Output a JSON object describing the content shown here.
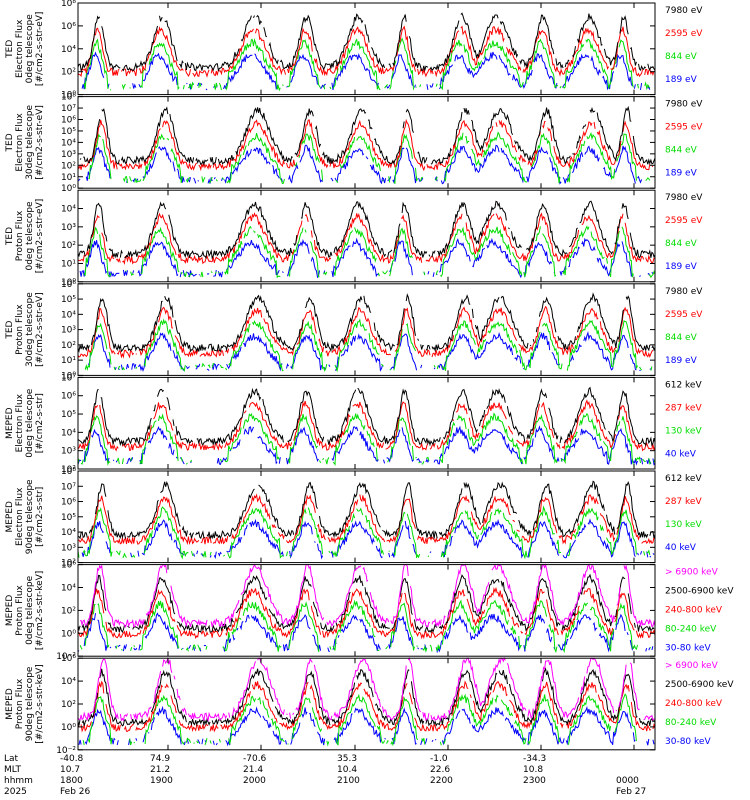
{
  "chart_data": [
    {
      "type": "line",
      "ylabel": [
        "TED",
        "Electron Flux",
        "0deg telescope",
        "[#/cm2-s-str-eV]"
      ],
      "ylim": [
        1,
        100000000
      ],
      "yscale": "log",
      "yticks": [
        {
          "value": 1,
          "label": "10⁰"
        },
        {
          "value": 100,
          "label": "10²"
        },
        {
          "value": 10000,
          "label": "10⁴"
        },
        {
          "value": 1000000,
          "label": "10⁶"
        },
        {
          "value": 100000000,
          "label": "10⁸"
        }
      ],
      "series": [
        {
          "name": "7980 eV",
          "color": "#000000"
        },
        {
          "name": "2595 eV",
          "color": "#ff0000"
        },
        {
          "name": "844 eV",
          "color": "#00dd00"
        },
        {
          "name": "189 eV",
          "color": "#0000ff"
        }
      ]
    },
    {
      "type": "line",
      "ylabel": [
        "TED",
        "Electron Flux",
        "30deg telescope",
        "[#/cm2-s-str-eV]"
      ],
      "ylim": [
        1,
        100000000
      ],
      "yscale": "log",
      "yticks": [
        {
          "value": 1,
          "label": "10⁰"
        },
        {
          "value": 10,
          "label": "10¹"
        },
        {
          "value": 100,
          "label": "10²"
        },
        {
          "value": 1000,
          "label": "10³"
        },
        {
          "value": 10000,
          "label": "10⁴"
        },
        {
          "value": 100000,
          "label": "10⁵"
        },
        {
          "value": 1000000,
          "label": "10⁶"
        },
        {
          "value": 10000000,
          "label": "10⁷"
        },
        {
          "value": 100000000,
          "label": "10⁸"
        }
      ],
      "series": [
        {
          "name": "7980 eV",
          "color": "#000000"
        },
        {
          "name": "2595 eV",
          "color": "#ff0000"
        },
        {
          "name": "844 eV",
          "color": "#00dd00"
        },
        {
          "name": "189 eV",
          "color": "#0000ff"
        }
      ]
    },
    {
      "type": "line",
      "ylabel": [
        "TED",
        "Proton Flux",
        "0deg telescope",
        "[#/cm2-s-str-eV]"
      ],
      "ylim": [
        1,
        100000
      ],
      "yscale": "log",
      "yticks": [
        {
          "value": 1,
          "label": "10⁰"
        },
        {
          "value": 10,
          "label": "10¹"
        },
        {
          "value": 100,
          "label": "10²"
        },
        {
          "value": 1000,
          "label": "10³"
        },
        {
          "value": 10000,
          "label": "10⁴"
        }
      ],
      "series": [
        {
          "name": "7980 eV",
          "color": "#000000"
        },
        {
          "name": "2595 eV",
          "color": "#ff0000"
        },
        {
          "name": "844 eV",
          "color": "#00dd00"
        },
        {
          "name": "189 eV",
          "color": "#0000ff"
        }
      ]
    },
    {
      "type": "line",
      "ylabel": [
        "TED",
        "Proton Flux",
        "30deg telescope",
        "[#/cm2-s-str-eV]"
      ],
      "ylim": [
        1,
        1000000
      ],
      "yscale": "log",
      "yticks": [
        {
          "value": 1,
          "label": "10⁰"
        },
        {
          "value": 10,
          "label": "10¹"
        },
        {
          "value": 100,
          "label": "10²"
        },
        {
          "value": 1000,
          "label": "10³"
        },
        {
          "value": 10000,
          "label": "10⁴"
        },
        {
          "value": 100000,
          "label": "10⁵"
        },
        {
          "value": 1000000,
          "label": "10⁶"
        }
      ],
      "series": [
        {
          "name": "7980 eV",
          "color": "#000000"
        },
        {
          "name": "2595 eV",
          "color": "#ff0000"
        },
        {
          "name": "844 eV",
          "color": "#00dd00"
        },
        {
          "name": "189 eV",
          "color": "#0000ff"
        }
      ]
    },
    {
      "type": "line",
      "ylabel": [
        "MEPED",
        "Electron Flux",
        "0deg telescope",
        "[#/cm2-s-str]"
      ],
      "ylim": [
        100,
        10000000
      ],
      "yscale": "log",
      "yticks": [
        {
          "value": 100,
          "label": "10²"
        },
        {
          "value": 1000,
          "label": "10³"
        },
        {
          "value": 10000,
          "label": "10⁴"
        },
        {
          "value": 100000,
          "label": "10⁵"
        },
        {
          "value": 1000000,
          "label": "10⁶"
        },
        {
          "value": 10000000,
          "label": "10⁷"
        }
      ],
      "series": [
        {
          "name": "612 keV",
          "color": "#000000"
        },
        {
          "name": "287 keV",
          "color": "#ff0000"
        },
        {
          "name": "130 keV",
          "color": "#00dd00"
        },
        {
          "name": "40 keV",
          "color": "#0000ff"
        }
      ]
    },
    {
      "type": "line",
      "ylabel": [
        "MEPED",
        "Electron Flux",
        "90deg telescope",
        "[#/cm2-s-str]"
      ],
      "ylim": [
        100,
        100000000
      ],
      "yscale": "log",
      "yticks": [
        {
          "value": 100,
          "label": "10²"
        },
        {
          "value": 1000,
          "label": "10³"
        },
        {
          "value": 10000,
          "label": "10⁴"
        },
        {
          "value": 100000,
          "label": "10⁵"
        },
        {
          "value": 1000000,
          "label": "10⁶"
        },
        {
          "value": 10000000,
          "label": "10⁷"
        },
        {
          "value": 100000000,
          "label": "10⁸"
        }
      ],
      "series": [
        {
          "name": "612 keV",
          "color": "#000000"
        },
        {
          "name": "287 keV",
          "color": "#ff0000"
        },
        {
          "name": "130 keV",
          "color": "#00dd00"
        },
        {
          "name": "40 keV",
          "color": "#0000ff"
        }
      ]
    },
    {
      "type": "line",
      "ylabel": [
        "MEPED",
        "Proton Flux",
        "0deg telescope",
        "[#/cm2-s-str-keV]"
      ],
      "ylim": [
        0.01,
        1000000
      ],
      "yscale": "log",
      "yticks": [
        {
          "value": 0.01,
          "label": "10⁻²"
        },
        {
          "value": 1,
          "label": "10⁰"
        },
        {
          "value": 100,
          "label": "10²"
        },
        {
          "value": 10000,
          "label": "10⁴"
        },
        {
          "value": 1000000,
          "label": "10⁶"
        }
      ],
      "series": [
        {
          "name": "> 6900 keV",
          "color": "#ff00ff"
        },
        {
          "name": "2500-6900 keV",
          "color": "#000000"
        },
        {
          "name": "240-800 keV",
          "color": "#ff0000"
        },
        {
          "name": "80-240 keV",
          "color": "#00dd00"
        },
        {
          "name": "30-80 keV",
          "color": "#0000ff"
        }
      ]
    },
    {
      "type": "line",
      "ylabel": [
        "MEPED",
        "Proton Flux",
        "90deg telescope",
        "[#/cm2-s-str-keV]"
      ],
      "ylim": [
        0.01,
        1000000
      ],
      "yscale": "log",
      "yticks": [
        {
          "value": 0.01,
          "label": "10⁻²"
        },
        {
          "value": 1,
          "label": "10⁰"
        },
        {
          "value": 100,
          "label": "10²"
        },
        {
          "value": 10000,
          "label": "10⁴"
        },
        {
          "value": 1000000,
          "label": "10⁶"
        }
      ],
      "series": [
        {
          "name": "> 6900 keV",
          "color": "#ff00ff"
        },
        {
          "name": "2500-6900 keV",
          "color": "#000000"
        },
        {
          "name": "240-800 keV",
          "color": "#ff0000"
        },
        {
          "name": "80-240 keV",
          "color": "#00dd00"
        },
        {
          "name": "30-80 keV",
          "color": "#0000ff"
        }
      ]
    }
  ],
  "x_axis": {
    "row_labels": [
      "Lat",
      "MLT",
      "hhmm",
      "2025"
    ],
    "columns": [
      {
        "lat": "-40.8",
        "mlt": "10.7",
        "hhmm": "1800",
        "date": "Feb 26"
      },
      {
        "lat": "74.9",
        "mlt": "21.2",
        "hhmm": "1900",
        "date": ""
      },
      {
        "lat": "-70.6",
        "mlt": "21.4",
        "hhmm": "2000",
        "date": ""
      },
      {
        "lat": "35.3",
        "mlt": "10.4",
        "hhmm": "2100",
        "date": ""
      },
      {
        "lat": "-1.0",
        "mlt": "22.6",
        "hhmm": "2200",
        "date": ""
      },
      {
        "lat": "-34.3",
        "mlt": "10.8",
        "hhmm": "2300",
        "date": ""
      },
      {
        "lat": "",
        "mlt": "",
        "hhmm": "0000",
        "date": "Feb 27"
      }
    ]
  }
}
